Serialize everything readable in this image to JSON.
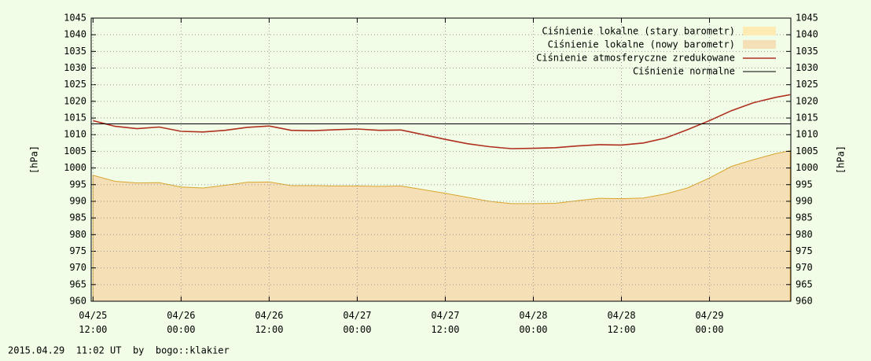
{
  "chart_data": {
    "type": "line",
    "ylabel": "[hPa]",
    "y2label": "[hPa]",
    "footer": "2015.04.29  11:02 UT  by  bogo::klakier",
    "xlim": [
      "04/25 11:45",
      "04/29 11:05"
    ],
    "xticks": [
      "04/25 12:00",
      "04/26 00:00",
      "04/26 12:00",
      "04/27 00:00",
      "04/27 12:00",
      "04/28 00:00",
      "04/28 12:00",
      "04/29 00:00"
    ],
    "ylim": [
      960,
      1045
    ],
    "yticks": [
      960,
      965,
      970,
      975,
      980,
      985,
      990,
      995,
      1000,
      1005,
      1010,
      1015,
      1020,
      1025,
      1030,
      1035,
      1040,
      1045
    ],
    "y2lim": [
      960,
      1045
    ],
    "y2ticks": [
      960,
      965,
      970,
      975,
      980,
      985,
      990,
      995,
      1000,
      1005,
      1010,
      1015,
      1020,
      1025,
      1030,
      1035,
      1040,
      1045
    ],
    "grid": true,
    "legend": "top-right",
    "x": [
      "04/25 12:00",
      "04/25 15:00",
      "04/25 18:00",
      "04/25 21:00",
      "04/26 00:00",
      "04/26 03:00",
      "04/26 06:00",
      "04/26 09:00",
      "04/26 12:00",
      "04/26 15:00",
      "04/26 18:00",
      "04/26 21:00",
      "04/27 00:00",
      "04/27 03:00",
      "04/27 06:00",
      "04/27 09:00",
      "04/27 12:00",
      "04/27 15:00",
      "04/27 18:00",
      "04/27 21:00",
      "04/28 00:00",
      "04/28 03:00",
      "04/28 06:00",
      "04/28 09:00",
      "04/28 12:00",
      "04/28 15:00",
      "04/28 18:00",
      "04/28 21:00",
      "04/29 00:00",
      "04/29 03:00",
      "04/29 06:00",
      "04/29 09:00",
      "04/29 11:00"
    ],
    "series": [
      {
        "name": "Ciśnienie lokalne (stary barometr)",
        "kind": "area",
        "color": "#feebb4",
        "values": [
          997.8,
          996.0,
          995.5,
          995.6,
          994.3,
          994.0,
          994.8,
          995.7,
          995.8,
          994.7,
          994.7,
          994.6,
          994.6,
          994.5,
          994.6,
          993.5,
          992.4,
          991.2,
          990.0,
          989.3,
          989.3,
          989.4,
          990.2,
          990.9,
          990.8,
          991.0,
          992.2,
          994.0,
          997.0,
          1000.5,
          1002.5,
          1004.3,
          1005.2
        ]
      },
      {
        "name": "Ciśnienie lokalne (nowy barometr)",
        "kind": "area",
        "color": "#f4dfb6",
        "values": [
          997.8,
          996.0,
          995.5,
          995.6,
          994.3,
          994.0,
          994.8,
          995.7,
          995.8,
          994.7,
          994.7,
          994.6,
          994.6,
          994.5,
          994.6,
          993.5,
          992.4,
          991.2,
          990.0,
          989.3,
          989.3,
          989.4,
          990.2,
          990.9,
          990.8,
          991.0,
          992.2,
          994.0,
          997.0,
          1000.5,
          1002.5,
          1004.3,
          1005.2
        ]
      },
      {
        "name": "Ciśnienie atmosferyczne zredukowane",
        "kind": "line",
        "color": "#b03020",
        "values": [
          1014.2,
          1012.5,
          1011.8,
          1012.3,
          1011.0,
          1010.8,
          1011.3,
          1012.2,
          1012.6,
          1011.3,
          1011.2,
          1011.5,
          1011.7,
          1011.3,
          1011.4,
          1010.0,
          1008.6,
          1007.3,
          1006.4,
          1005.8,
          1005.9,
          1006.1,
          1006.6,
          1007.0,
          1006.9,
          1007.5,
          1009.0,
          1011.5,
          1014.2,
          1017.2,
          1019.6,
          1021.2,
          1022.0
        ]
      },
      {
        "name": "Ciśnienie normalne",
        "kind": "hline",
        "color": "#000000",
        "value": 1013.25
      }
    ]
  }
}
